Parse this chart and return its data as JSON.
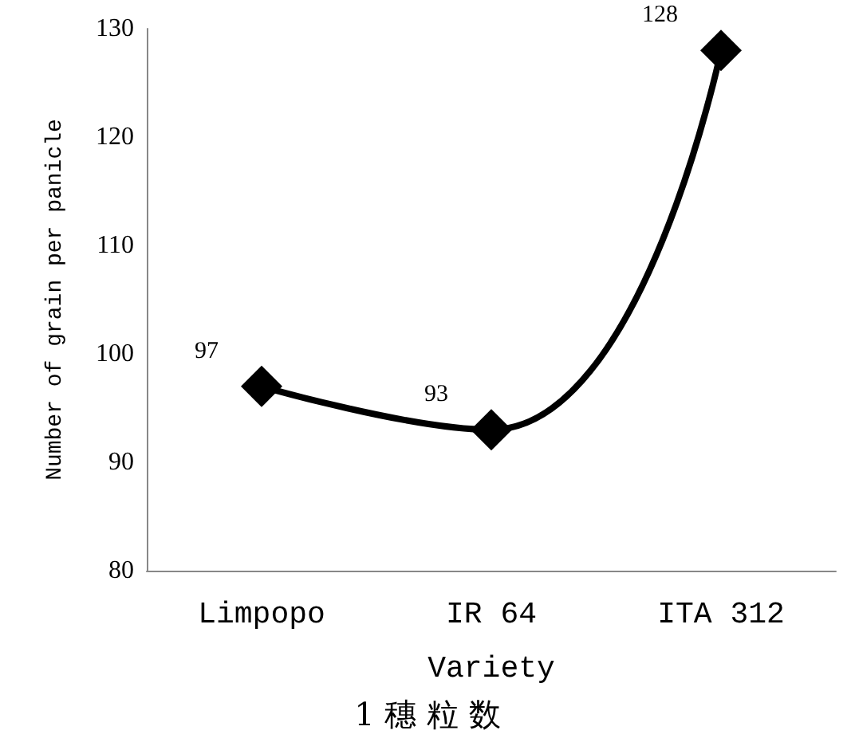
{
  "chart_data": {
    "type": "line",
    "xlabel": "Variety",
    "ylabel": "Number of grain per panicle",
    "annotations": [
      "1 穗 粒 数"
    ],
    "categories": [
      "Limpopo",
      "IR 64",
      "ITA 312"
    ],
    "values": [
      97,
      93,
      128
    ],
    "color": "#000000",
    "ylim": [
      80,
      130
    ],
    "yticks": [
      80,
      90,
      100,
      110,
      120,
      130
    ],
    "grid": false,
    "marker": "diamond",
    "line_style": "solid",
    "data_labels": true
  }
}
